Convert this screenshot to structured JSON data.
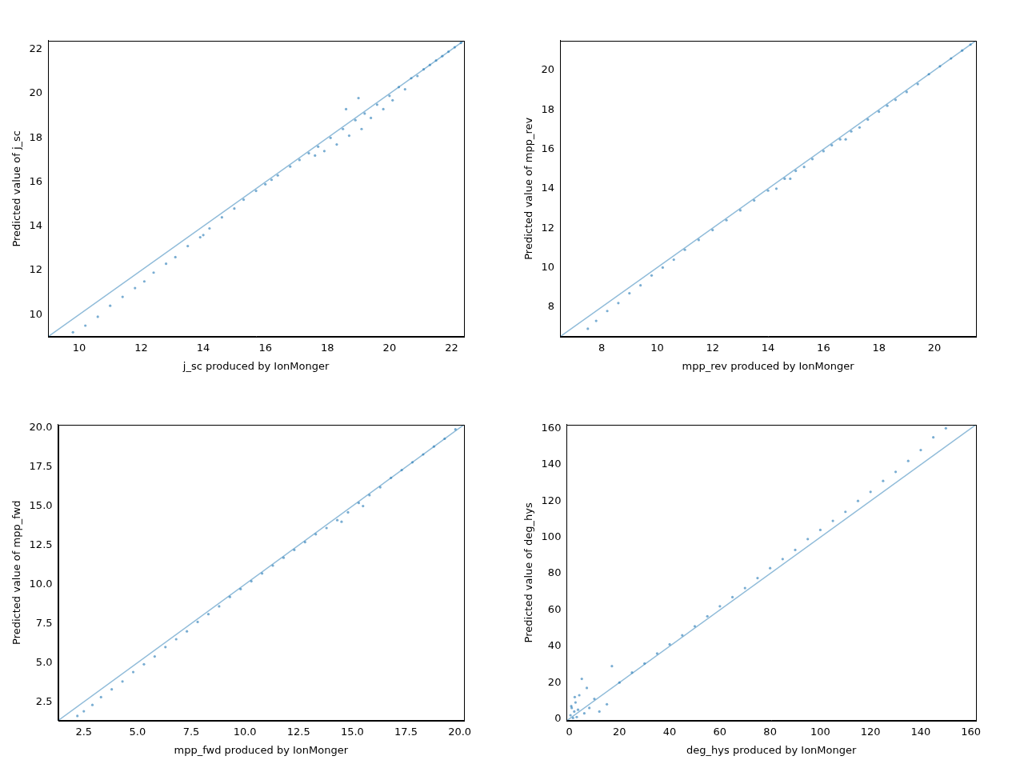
{
  "chart_data": [
    {
      "type": "scatter",
      "x_label": "j_sc produced by IonMonger",
      "y_label": "Predicted value of j_sc",
      "grid": false,
      "xlim": [
        9,
        22.4
      ],
      "ylim": [
        9,
        22.4
      ],
      "xticks": [
        10,
        12,
        14,
        16,
        18,
        20,
        22
      ],
      "yticks": [
        10,
        12,
        14,
        16,
        18,
        20,
        22
      ],
      "series": [
        {
          "type": "scatter",
          "color": "#1f77b4",
          "x": [
            9.8,
            10.2,
            10.6,
            11.0,
            11.4,
            11.8,
            12.1,
            12.4,
            12.8,
            13.1,
            13.5,
            13.9,
            14.2,
            14.6,
            15.0,
            15.3,
            15.7,
            16.0,
            16.4,
            16.8,
            17.1,
            17.4,
            17.7,
            17.9,
            18.1,
            18.3,
            18.5,
            18.7,
            18.9,
            19.1,
            19.2,
            19.4,
            19.6,
            19.8,
            20.0,
            20.1,
            20.3,
            20.5,
            20.7,
            20.9,
            21.1,
            21.3,
            21.5,
            21.7,
            21.9,
            22.1,
            22.3,
            18.6,
            19.0,
            14.0,
            16.2,
            17.6
          ],
          "values": [
            9.2,
            9.5,
            9.9,
            10.4,
            10.8,
            11.2,
            11.5,
            11.9,
            12.3,
            12.6,
            13.1,
            13.5,
            13.9,
            14.4,
            14.8,
            15.2,
            15.6,
            15.9,
            16.3,
            16.7,
            17.0,
            17.3,
            17.6,
            17.4,
            18.0,
            17.7,
            18.4,
            18.1,
            18.8,
            18.4,
            19.1,
            18.9,
            19.5,
            19.3,
            19.9,
            19.7,
            20.3,
            20.2,
            20.7,
            20.8,
            21.1,
            21.3,
            21.5,
            21.7,
            21.9,
            22.1,
            22.3,
            19.3,
            19.8,
            13.6,
            16.1,
            17.2
          ]
        },
        {
          "type": "line",
          "color": "#1f77b4",
          "x": [
            9,
            22.4
          ],
          "values": [
            9,
            22.4
          ]
        }
      ]
    },
    {
      "type": "scatter",
      "x_label": "mpp_rev produced by IonMonger",
      "y_label": "Predicted value of mpp_rev",
      "grid": false,
      "xlim": [
        6.5,
        21.5
      ],
      "ylim": [
        6.5,
        21.5
      ],
      "xticks": [
        8,
        10,
        12,
        14,
        16,
        18,
        20
      ],
      "yticks": [
        8,
        10,
        12,
        14,
        16,
        18,
        20
      ],
      "series": [
        {
          "type": "scatter",
          "color": "#1f77b4",
          "x": [
            7.5,
            7.8,
            8.2,
            8.6,
            9.0,
            9.4,
            9.8,
            10.2,
            10.6,
            11.0,
            11.5,
            12.0,
            12.5,
            13.0,
            13.5,
            14.0,
            14.3,
            14.6,
            15.0,
            15.3,
            15.6,
            16.0,
            16.3,
            16.6,
            17.0,
            17.3,
            17.6,
            18.0,
            18.3,
            18.6,
            19.0,
            19.4,
            19.8,
            20.2,
            20.6,
            21.0,
            21.3,
            14.8,
            16.8
          ],
          "values": [
            6.9,
            7.3,
            7.8,
            8.2,
            8.7,
            9.1,
            9.6,
            10.0,
            10.4,
            10.9,
            11.4,
            11.9,
            12.4,
            12.9,
            13.4,
            13.9,
            14.0,
            14.5,
            14.9,
            15.1,
            15.5,
            15.9,
            16.2,
            16.5,
            16.9,
            17.1,
            17.5,
            17.9,
            18.2,
            18.5,
            18.9,
            19.3,
            19.8,
            20.2,
            20.6,
            21.0,
            21.3,
            14.5,
            16.5
          ]
        },
        {
          "type": "line",
          "color": "#1f77b4",
          "x": [
            6.5,
            21.5
          ],
          "values": [
            6.5,
            21.5
          ]
        }
      ]
    },
    {
      "type": "scatter",
      "x_label": "mpp_fwd produced by IonMonger",
      "y_label": "Predicted value of mpp_fwd",
      "grid": false,
      "xlim": [
        1.3,
        20.2
      ],
      "ylim": [
        1.3,
        20.2
      ],
      "xticks": [
        {
          "value": 2.5,
          "label": "2.5"
        },
        {
          "value": 5,
          "label": "5.0"
        },
        {
          "value": 7.5,
          "label": "7.5"
        },
        {
          "value": 10,
          "label": "10.0"
        },
        {
          "value": 12.5,
          "label": "12.5"
        },
        {
          "value": 15,
          "label": "15.0"
        },
        {
          "value": 17.5,
          "label": "17.5"
        },
        {
          "value": 20,
          "label": "20.0"
        }
      ],
      "yticks": [
        {
          "value": 2.5,
          "label": "2.5"
        },
        {
          "value": 5,
          "label": "5.0"
        },
        {
          "value": 7.5,
          "label": "7.5"
        },
        {
          "value": 10,
          "label": "10.0"
        },
        {
          "value": 12.5,
          "label": "12.5"
        },
        {
          "value": 15,
          "label": "15.0"
        },
        {
          "value": 17.5,
          "label": "17.5"
        },
        {
          "value": 20,
          "label": "20.0"
        }
      ],
      "series": [
        {
          "type": "scatter",
          "color": "#1f77b4",
          "x": [
            2.2,
            2.5,
            2.9,
            3.3,
            3.8,
            4.3,
            4.8,
            5.3,
            5.8,
            6.3,
            6.8,
            7.3,
            7.8,
            8.3,
            8.8,
            9.3,
            9.8,
            10.3,
            10.8,
            11.3,
            11.8,
            12.3,
            12.8,
            13.3,
            13.8,
            14.3,
            14.8,
            15.3,
            15.8,
            16.3,
            16.8,
            17.3,
            17.8,
            18.3,
            18.8,
            19.3,
            19.8,
            14.5,
            15.5
          ],
          "values": [
            1.6,
            1.9,
            2.3,
            2.8,
            3.3,
            3.8,
            4.4,
            4.9,
            5.4,
            6.0,
            6.5,
            7.0,
            7.6,
            8.1,
            8.6,
            9.2,
            9.7,
            10.2,
            10.7,
            11.2,
            11.7,
            12.2,
            12.7,
            13.2,
            13.6,
            14.1,
            14.6,
            15.2,
            15.7,
            16.2,
            16.8,
            17.3,
            17.8,
            18.3,
            18.8,
            19.3,
            19.9,
            14.0,
            15.0
          ]
        },
        {
          "type": "line",
          "color": "#1f77b4",
          "x": [
            1.3,
            20.2
          ],
          "values": [
            1.3,
            20.2
          ]
        }
      ]
    },
    {
      "type": "scatter",
      "x_label": "deg_hys produced by IonMonger",
      "y_label": "Predicted value of deg_hys",
      "grid": false,
      "xlim": [
        -1,
        162
      ],
      "ylim": [
        -1,
        162
      ],
      "xticks": [
        0,
        20,
        40,
        60,
        80,
        100,
        120,
        140,
        160
      ],
      "yticks": [
        0,
        20,
        40,
        60,
        80,
        100,
        120,
        140,
        160
      ],
      "series": [
        {
          "type": "scatter",
          "color": "#1f77b4",
          "x": [
            0.5,
            1,
            1.5,
            2,
            2.5,
            3,
            3.5,
            4,
            5,
            6,
            7,
            8,
            10,
            12,
            15,
            17,
            0.8,
            2.2,
            20,
            25,
            30,
            35,
            40,
            45,
            50,
            55,
            60,
            65,
            70,
            75,
            80,
            85,
            90,
            95,
            100,
            105,
            110,
            115,
            120,
            125,
            130,
            135,
            140,
            145,
            150
          ],
          "values": [
            2,
            6,
            0.5,
            4,
            9,
            1,
            5,
            13,
            22,
            3,
            17,
            6,
            11,
            4,
            8,
            29,
            7,
            12,
            20,
            25.5,
            30.5,
            36,
            41,
            46,
            51,
            56.5,
            62,
            67,
            72,
            77.5,
            83,
            88,
            93,
            99,
            104,
            109,
            114,
            120,
            125,
            131,
            136,
            142,
            148,
            155,
            160
          ]
        },
        {
          "type": "line",
          "color": "#1f77b4",
          "x": [
            -1,
            162
          ],
          "values": [
            -1,
            162
          ]
        }
      ]
    }
  ]
}
